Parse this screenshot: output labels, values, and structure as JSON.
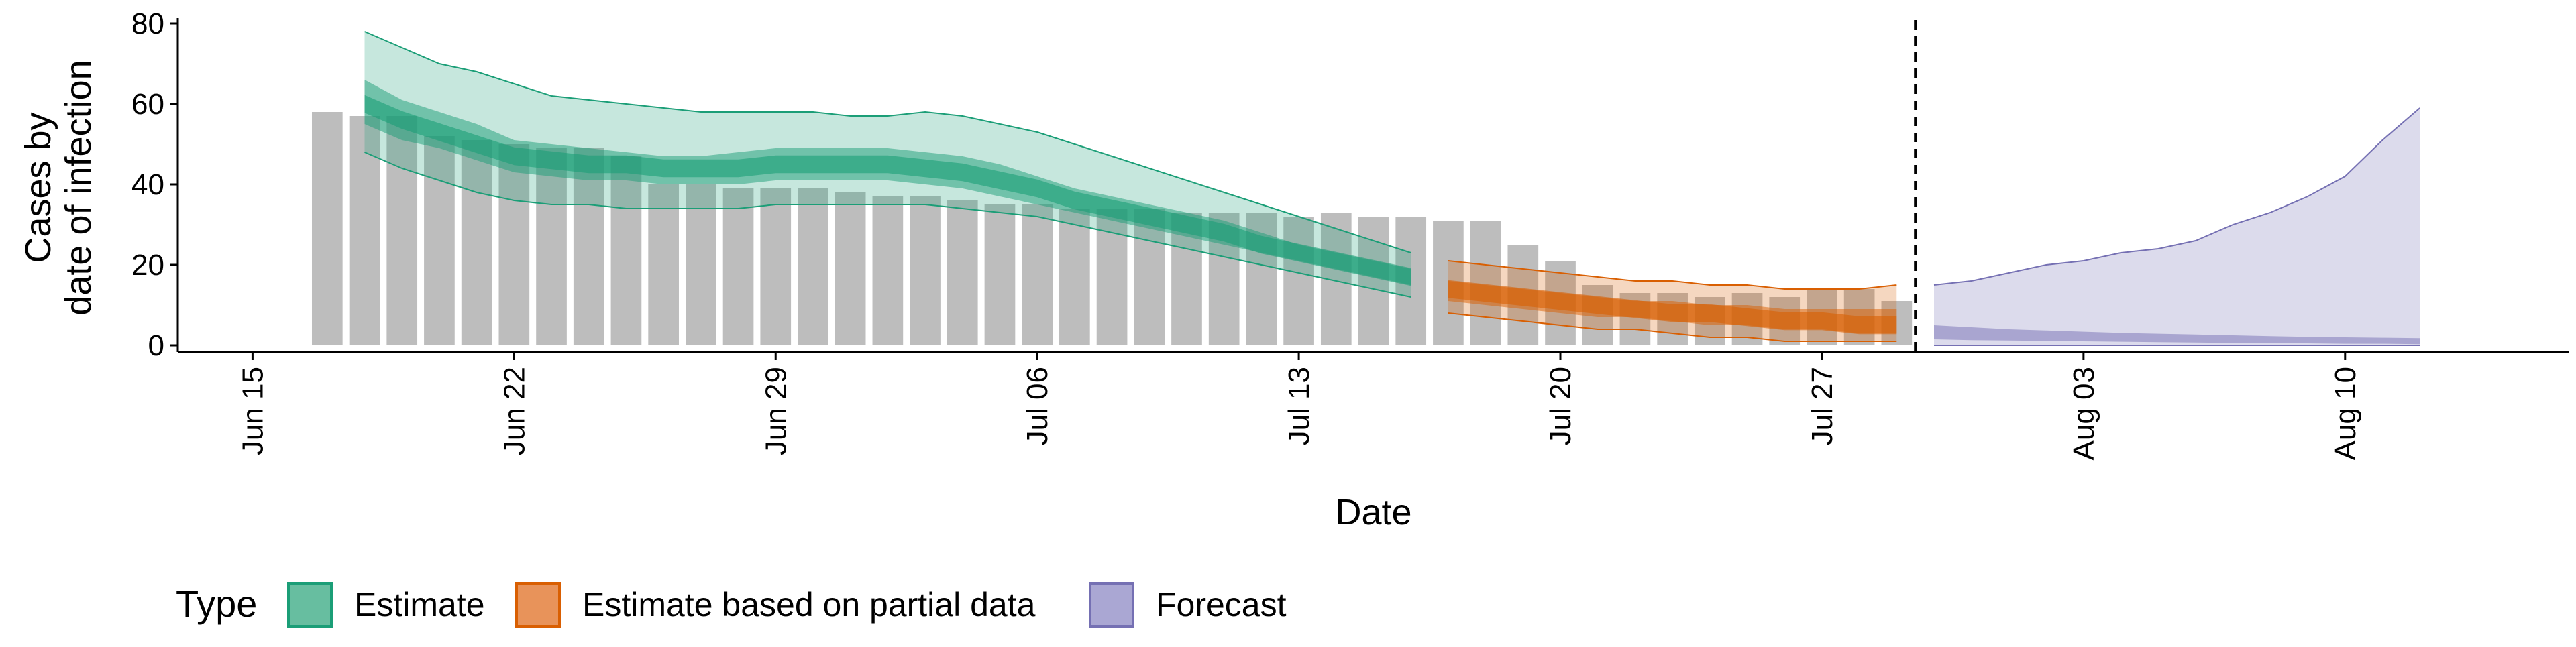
{
  "chart_data": {
    "type": "bar",
    "xlabel": "Date",
    "ylabel_lines": [
      "Cases by",
      "date of infection"
    ],
    "ylim": [
      0,
      80
    ],
    "yticks": [
      0,
      20,
      40,
      60,
      80
    ],
    "xlim": [
      "2020-06-13",
      "2020-08-16"
    ],
    "x_ticks": [
      {
        "date": "2020-06-15",
        "label": "Jun 15"
      },
      {
        "date": "2020-06-22",
        "label": "Jun 22"
      },
      {
        "date": "2020-06-29",
        "label": "Jun 29"
      },
      {
        "date": "2020-07-06",
        "label": "Jul 06"
      },
      {
        "date": "2020-07-13",
        "label": "Jul 13"
      },
      {
        "date": "2020-07-20",
        "label": "Jul 20"
      },
      {
        "date": "2020-07-27",
        "label": "Jul 27"
      },
      {
        "date": "2020-08-03",
        "label": "Aug 03"
      },
      {
        "date": "2020-08-10",
        "label": "Aug 10"
      }
    ],
    "reported_cases": {
      "dates": [
        "2020-06-17",
        "2020-06-18",
        "2020-06-19",
        "2020-06-20",
        "2020-06-21",
        "2020-06-22",
        "2020-06-23",
        "2020-06-24",
        "2020-06-25",
        "2020-06-26",
        "2020-06-27",
        "2020-06-28",
        "2020-06-29",
        "2020-06-30",
        "2020-07-01",
        "2020-07-02",
        "2020-07-03",
        "2020-07-04",
        "2020-07-05",
        "2020-07-06",
        "2020-07-07",
        "2020-07-08",
        "2020-07-09",
        "2020-07-10",
        "2020-07-11",
        "2020-07-12",
        "2020-07-13",
        "2020-07-14",
        "2020-07-15",
        "2020-07-16",
        "2020-07-17",
        "2020-07-18",
        "2020-07-19",
        "2020-07-20",
        "2020-07-21",
        "2020-07-22",
        "2020-07-23",
        "2020-07-24",
        "2020-07-25",
        "2020-07-26",
        "2020-07-27",
        "2020-07-28",
        "2020-07-29"
      ],
      "values": [
        58,
        57,
        57,
        52,
        51,
        50,
        49,
        49,
        47,
        40,
        40,
        39,
        39,
        39,
        38,
        37,
        37,
        36,
        35,
        35,
        34,
        34,
        34,
        33,
        33,
        33,
        32,
        33,
        32,
        32,
        31,
        31,
        25,
        21,
        15,
        13,
        13,
        12,
        13,
        12,
        14,
        14,
        11
      ]
    },
    "series": [
      {
        "name": "Estimate",
        "color": "#1b9e77",
        "dates": [
          "2020-06-18",
          "2020-06-19",
          "2020-06-20",
          "2020-06-21",
          "2020-06-22",
          "2020-06-23",
          "2020-06-24",
          "2020-06-25",
          "2020-06-26",
          "2020-06-27",
          "2020-06-28",
          "2020-06-29",
          "2020-06-30",
          "2020-07-01",
          "2020-07-02",
          "2020-07-03",
          "2020-07-04",
          "2020-07-05",
          "2020-07-06",
          "2020-07-07",
          "2020-07-08",
          "2020-07-09",
          "2020-07-10",
          "2020-07-11",
          "2020-07-12",
          "2020-07-13",
          "2020-07-14",
          "2020-07-15",
          "2020-07-16"
        ],
        "upper90": [
          78,
          74,
          70,
          68,
          65,
          62,
          61,
          60,
          59,
          58,
          58,
          58,
          58,
          57,
          57,
          58,
          57,
          55,
          53,
          50,
          47,
          44,
          41,
          38,
          35,
          32,
          29,
          26,
          23
        ],
        "upper50": [
          66,
          61,
          58,
          55,
          51,
          50,
          49,
          48,
          47,
          47,
          48,
          49,
          49,
          49,
          49,
          48,
          47,
          45,
          42,
          39,
          37,
          35,
          33,
          31,
          28,
          25,
          23,
          21,
          19
        ],
        "median": [
          60,
          56,
          53,
          50,
          47,
          46,
          45,
          45,
          44,
          44,
          44,
          45,
          45,
          45,
          45,
          44,
          43,
          41,
          39,
          36,
          34,
          32,
          30,
          28,
          25,
          23,
          21,
          19,
          17
        ],
        "lower50": [
          55,
          51,
          49,
          46,
          43,
          42,
          41,
          41,
          40,
          40,
          40,
          41,
          41,
          41,
          41,
          40,
          39,
          37,
          35,
          33,
          31,
          29,
          27,
          25,
          23,
          21,
          19,
          17,
          15
        ],
        "lower90": [
          48,
          44,
          41,
          38,
          36,
          35,
          35,
          34,
          34,
          34,
          34,
          35,
          35,
          35,
          35,
          35,
          34,
          33,
          32,
          30,
          28,
          26,
          24,
          22,
          20,
          18,
          16,
          14,
          12
        ]
      },
      {
        "name": "Estimate based on partial data",
        "color": "#d95f02",
        "dates": [
          "2020-07-17",
          "2020-07-18",
          "2020-07-19",
          "2020-07-20",
          "2020-07-21",
          "2020-07-22",
          "2020-07-23",
          "2020-07-24",
          "2020-07-25",
          "2020-07-26",
          "2020-07-27",
          "2020-07-28",
          "2020-07-29"
        ],
        "upper90": [
          21,
          20,
          19,
          18,
          17,
          16,
          16,
          15,
          15,
          14,
          14,
          14,
          15
        ],
        "upper50": [
          16,
          15,
          14,
          13,
          12,
          11,
          11,
          10,
          10,
          9,
          9,
          9,
          9
        ],
        "median": [
          14,
          13,
          12,
          11,
          10,
          9,
          8,
          8,
          7,
          6,
          6,
          5,
          5
        ],
        "lower50": [
          11,
          10,
          9,
          8,
          7,
          7,
          6,
          5,
          5,
          4,
          4,
          3,
          3
        ],
        "lower90": [
          8,
          7,
          6,
          5,
          4,
          4,
          3,
          2,
          2,
          1,
          1,
          1,
          1
        ]
      },
      {
        "name": "Forecast",
        "color": "#7570b3",
        "dates": [
          "2020-07-30",
          "2020-07-31",
          "2020-08-01",
          "2020-08-02",
          "2020-08-03",
          "2020-08-04",
          "2020-08-05",
          "2020-08-06",
          "2020-08-07",
          "2020-08-08",
          "2020-08-09",
          "2020-08-10",
          "2020-08-11",
          "2020-08-12"
        ],
        "upper90": [
          15,
          16,
          18,
          20,
          21,
          23,
          24,
          26,
          30,
          33,
          37,
          42,
          51,
          59
        ],
        "upper50": [
          5,
          4.5,
          4,
          3.7,
          3.4,
          3.1,
          2.9,
          2.7,
          2.5,
          2.3,
          2.1,
          2,
          1.9,
          1.8
        ],
        "lower50": [
          1.5,
          1.3,
          1.2,
          1.1,
          1,
          0.9,
          0.8,
          0.7,
          0.6,
          0.5,
          0.5,
          0.4,
          0.4,
          0.3
        ],
        "lower90": [
          0,
          0,
          0,
          0,
          0,
          0,
          0,
          0,
          0,
          0,
          0,
          0,
          0,
          0
        ]
      }
    ],
    "forecast_start_marker": "2020-07-29",
    "legend": {
      "title": "Type",
      "position": "bottom",
      "items": [
        {
          "label": "Estimate",
          "fill": "#67bea0",
          "stroke": "#1b9e77"
        },
        {
          "label": "Estimate based on partial data",
          "fill": "#e8935a",
          "stroke": "#d95f02"
        },
        {
          "label": "Forecast",
          "fill": "#aaa7d3",
          "stroke": "#7570b3"
        }
      ]
    },
    "bar_color": "#bdbdbd",
    "grid": false
  }
}
